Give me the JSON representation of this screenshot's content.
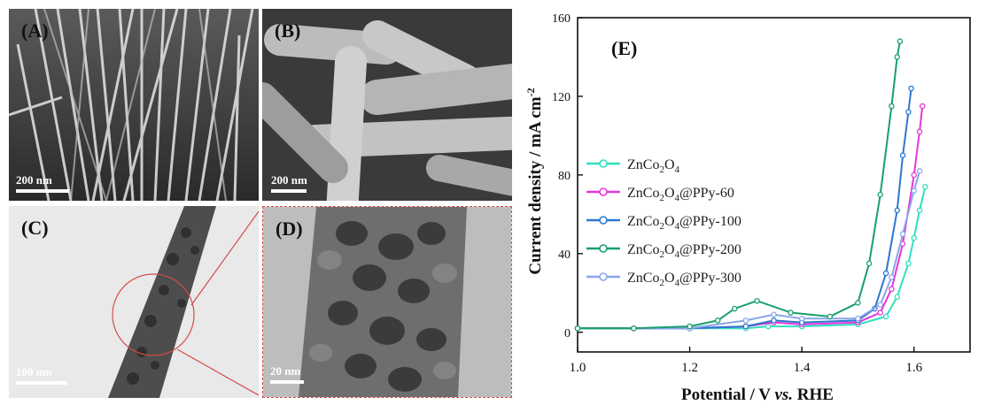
{
  "panels": {
    "a": {
      "label": "(A)",
      "scale": "200 nm"
    },
    "b": {
      "label": "(B)",
      "scale": "200 nm"
    },
    "c": {
      "label": "(C)",
      "scale": "100 nm"
    },
    "d": {
      "label": "(D)",
      "scale": "20 nm"
    }
  },
  "colors": {
    "ZnCo2O4": "#2fe0c0",
    "PPy60": "#e636d8",
    "PPy100": "#2b78d0",
    "PPy200": "#17a06a",
    "PPy300": "#8aa6ea"
  },
  "chart_data": {
    "type": "line",
    "panel_label": "(E)",
    "xlabel": "Potential / V vs. RHE",
    "ylabel": "Current density / mA cm-2",
    "xlim": [
      1.0,
      1.7
    ],
    "ylim": [
      -10,
      160
    ],
    "xticks": [
      "1.0",
      "1.2",
      "1.4",
      "1.6"
    ],
    "yticks": [
      "0",
      "40",
      "80",
      "120",
      "160"
    ],
    "legend_position": "center-left",
    "series": [
      {
        "name": "ZnCo2O4",
        "label_base": "ZnCo",
        "sub1": "2",
        "mid": "O",
        "sub2": "4",
        "suffix": "",
        "x": [
          1.0,
          1.1,
          1.2,
          1.3,
          1.34,
          1.4,
          1.5,
          1.55,
          1.57,
          1.59,
          1.6,
          1.61,
          1.62
        ],
        "y": [
          2,
          2,
          2,
          2,
          3,
          3,
          4,
          8,
          18,
          35,
          48,
          62,
          74
        ]
      },
      {
        "name": "ZnCo2O4@PPy-60",
        "label_base": "ZnCo",
        "sub1": "2",
        "mid": "O",
        "sub2": "4",
        "suffix": "@PPy-60",
        "x": [
          1.0,
          1.1,
          1.2,
          1.3,
          1.35,
          1.4,
          1.5,
          1.54,
          1.56,
          1.58,
          1.6,
          1.61,
          1.615
        ],
        "y": [
          2,
          2,
          2,
          3,
          5,
          4,
          5,
          10,
          22,
          45,
          80,
          102,
          115
        ]
      },
      {
        "name": "ZnCo2O4@PPy-100",
        "label_base": "ZnCo",
        "sub1": "2",
        "mid": "O",
        "sub2": "4",
        "suffix": "@PPy-100",
        "x": [
          1.0,
          1.1,
          1.2,
          1.3,
          1.35,
          1.4,
          1.5,
          1.53,
          1.55,
          1.57,
          1.58,
          1.59,
          1.595
        ],
        "y": [
          2,
          2,
          2,
          3,
          6,
          5,
          6,
          12,
          30,
          62,
          90,
          112,
          124
        ]
      },
      {
        "name": "ZnCo2O4@PPy-200",
        "label_base": "ZnCo",
        "sub1": "2",
        "mid": "O",
        "sub2": "4",
        "suffix": "@PPy-200",
        "x": [
          1.0,
          1.1,
          1.2,
          1.25,
          1.28,
          1.32,
          1.38,
          1.45,
          1.5,
          1.52,
          1.54,
          1.56,
          1.57,
          1.575
        ],
        "y": [
          2,
          2,
          3,
          6,
          12,
          16,
          10,
          8,
          15,
          35,
          70,
          115,
          140,
          148
        ]
      },
      {
        "name": "ZnCo2O4@PPy-300",
        "label_base": "ZnCo",
        "sub1": "2",
        "mid": "O",
        "sub2": "4",
        "suffix": "@PPy-300",
        "x": [
          1.0,
          1.1,
          1.2,
          1.3,
          1.35,
          1.4,
          1.5,
          1.54,
          1.56,
          1.58,
          1.6,
          1.61
        ],
        "y": [
          2,
          2,
          2,
          6,
          9,
          7,
          7,
          14,
          28,
          50,
          72,
          82
        ]
      }
    ]
  }
}
